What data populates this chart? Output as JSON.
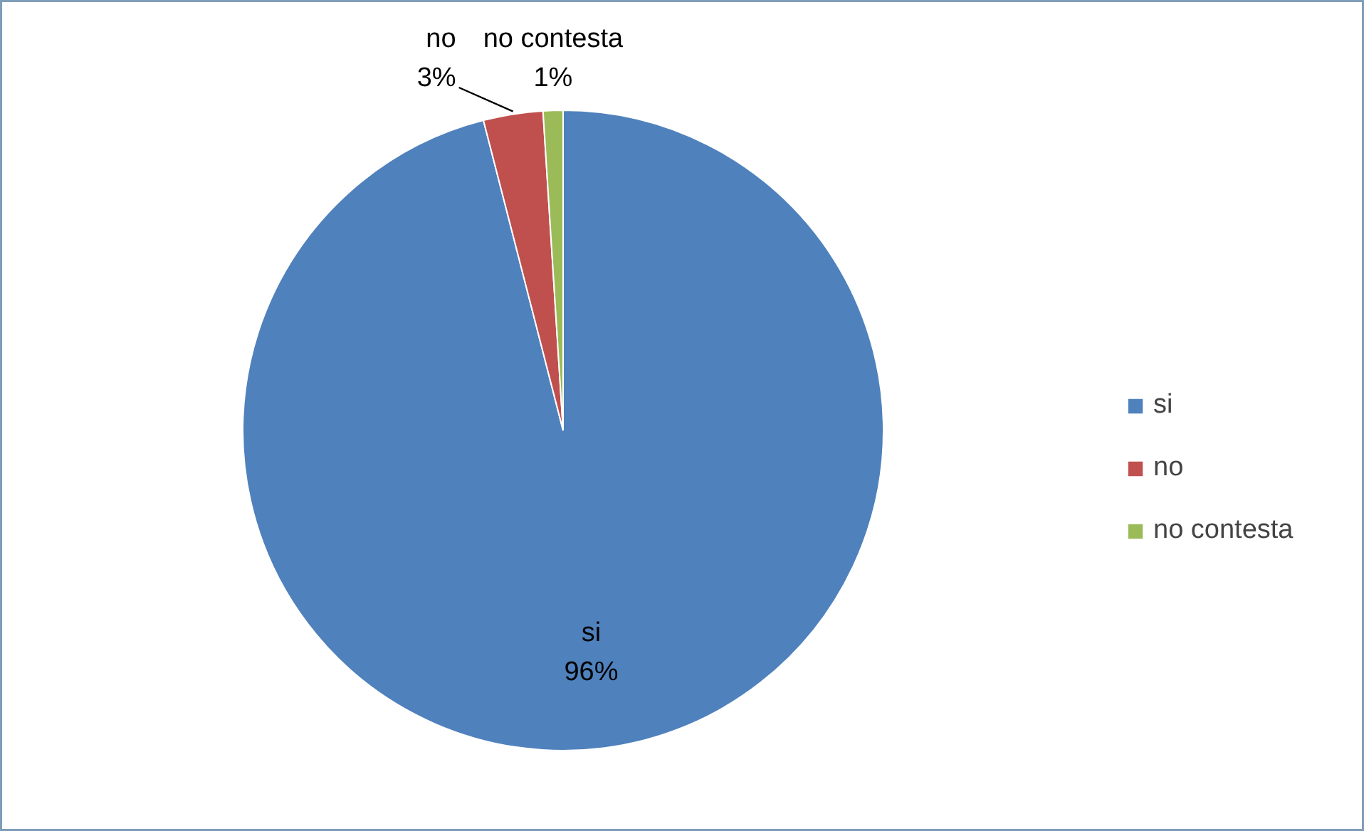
{
  "chart_data": {
    "type": "pie",
    "categories": [
      "si",
      "no",
      "no contesta"
    ],
    "values": [
      96,
      3,
      1
    ],
    "value_labels": [
      "96%",
      "3%",
      "1%"
    ],
    "colors": [
      "#4f81bd",
      "#c0504d",
      "#9bbb59"
    ],
    "legend": "right"
  }
}
